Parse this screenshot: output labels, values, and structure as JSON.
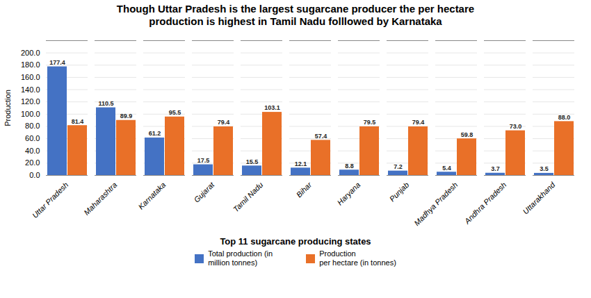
{
  "chart_data": {
    "type": "bar",
    "title": "Though Uttar Pradesh is the largest sugarcane producer the per hectare\nproduction is highest in Tamil Nadu folllowed by Karnataka",
    "xlabel": "Top 11 sugarcane producing states",
    "ylabel": "Production",
    "categories": [
      "Uttar Pradesh",
      "Maharashtra",
      "Karnataka",
      "Gujarat",
      "Tamil Nadu",
      "Bihar",
      "Haryana",
      "Punjab",
      "Madhya Pradesh",
      "Andhra Pradesh",
      "Uttarakhand"
    ],
    "series": [
      {
        "name": "Total production (in\nmillion tonnes)",
        "color": "#4472C4",
        "values": [
          177.4,
          110.5,
          61.2,
          17.5,
          15.5,
          12.1,
          8.8,
          7.2,
          5.4,
          3.7,
          3.5
        ],
        "value_labels": [
          "177.4",
          "110.5",
          "61.2",
          "17.5",
          "15.5",
          "12.1",
          "8.8",
          "7.2",
          "5.4",
          "3.7",
          "3.5"
        ]
      },
      {
        "name": "Production\nper hectare (in tonnes)",
        "color": "#E97028",
        "values": [
          81.4,
          89.9,
          95.5,
          79.4,
          103.1,
          57.4,
          79.5,
          79.4,
          59.8,
          73.0,
          88.0
        ],
        "value_labels": [
          "81.4",
          "89.9",
          "95.5",
          "79.4",
          "103.1",
          "57.4",
          "79.5",
          "79.4",
          "59.8",
          "73.0",
          "88.0"
        ]
      }
    ],
    "ylim": [
      0,
      220
    ],
    "yticks": [
      {
        "value": 0,
        "label": "0.0"
      },
      {
        "value": 20,
        "label": "20.0"
      },
      {
        "value": 40,
        "label": "40.0"
      },
      {
        "value": 60,
        "label": "60.0"
      },
      {
        "value": 80,
        "label": "80.0"
      },
      {
        "value": 100,
        "label": "100.0"
      },
      {
        "value": 120,
        "label": "120.0"
      },
      {
        "value": 140,
        "label": "140.0"
      },
      {
        "value": 160,
        "label": "160.0"
      },
      {
        "value": 180,
        "label": "180.0"
      },
      {
        "value": 200,
        "label": "200.0"
      }
    ],
    "grid": true,
    "data_labels": true,
    "legend": "bottom"
  }
}
